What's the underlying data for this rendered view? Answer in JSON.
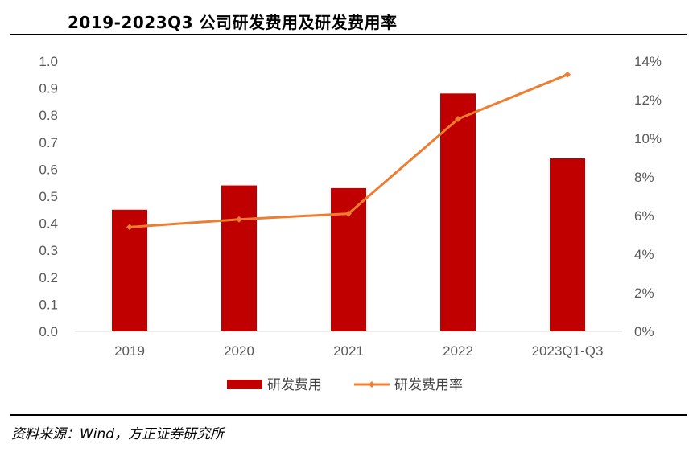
{
  "title": "2019-2023Q3 公司研发费用及研发费用率",
  "source": "资料来源：Wind，方正证券研究所",
  "chart_data": {
    "type": "bar+line",
    "title": "2019-2023Q3 公司研发费用及研发费用率",
    "categories": [
      "2019",
      "2020",
      "2021",
      "2022",
      "2023Q1-Q3"
    ],
    "series": [
      {
        "name": "研发费用",
        "type": "bar",
        "axis": "left",
        "color": "#C00000",
        "values": [
          0.45,
          0.54,
          0.53,
          0.88,
          0.64
        ]
      },
      {
        "name": "研发费用率",
        "type": "line",
        "axis": "right",
        "color": "#ED7D31",
        "values": [
          5.4,
          5.8,
          6.1,
          11.0,
          13.3
        ]
      }
    ],
    "left_axis": {
      "ylim": [
        0,
        1.0
      ],
      "ticks": [
        "0.0",
        "0.1",
        "0.2",
        "0.3",
        "0.4",
        "0.5",
        "0.6",
        "0.7",
        "0.8",
        "0.9",
        "1.0"
      ]
    },
    "right_axis": {
      "ylim": [
        0,
        14
      ],
      "ticks": [
        "0%",
        "2%",
        "4%",
        "6%",
        "8%",
        "10%",
        "12%",
        "14%"
      ]
    },
    "legend": "bottom",
    "grid": false
  }
}
